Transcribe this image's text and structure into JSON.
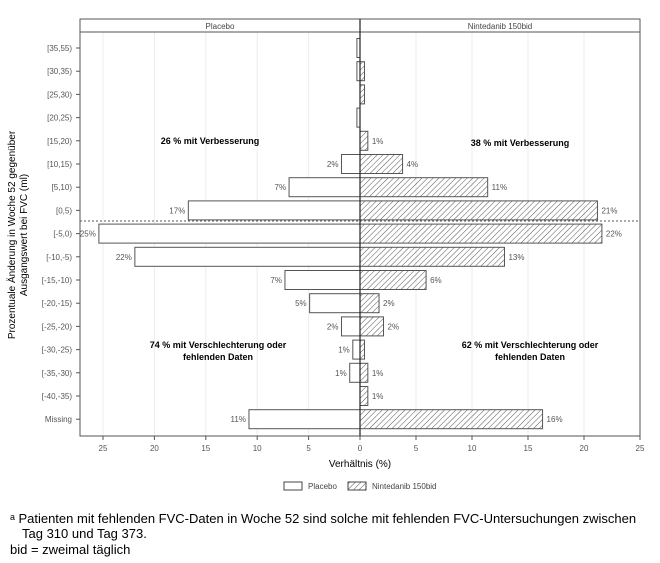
{
  "chart_data": {
    "type": "bar",
    "orientation": "horizontal-butterfly",
    "panels": [
      "Placebo",
      "Nintedanib 150bid"
    ],
    "categories": [
      "[35,55)",
      "[30,35)",
      "[25,30)",
      "[20,25)",
      "[15,20)",
      "[10,15)",
      "[5,10)",
      "[0,5)",
      "[-5,0)",
      "[-10,-5)",
      "[-15,-10)",
      "[-20,-15)",
      "[-25,-20)",
      "[-30,-25)",
      "[-35,-30)",
      "[-40,-35)",
      "Missing"
    ],
    "series": [
      {
        "name": "Placebo",
        "side": "left",
        "fill": "none",
        "values": [
          0.3,
          0.3,
          0,
          0.3,
          0,
          1.8,
          6.9,
          16.7,
          25.4,
          21.9,
          7.3,
          4.9,
          1.8,
          0.7,
          1.0,
          0,
          10.8
        ],
        "labels": [
          "",
          "",
          "",
          "",
          "",
          "2%",
          "7%",
          "17%",
          "25%",
          "22%",
          "7%",
          "5%",
          "2%",
          "1%",
          "1%",
          "",
          "11%"
        ]
      },
      {
        "name": "Nintedanib 150bid",
        "side": "right",
        "fill": "hatch",
        "values": [
          0,
          0.4,
          0.4,
          0,
          0.7,
          3.8,
          11.4,
          21.2,
          21.6,
          12.9,
          5.9,
          1.7,
          2.1,
          0.4,
          0.7,
          0.7,
          16.3
        ],
        "labels": [
          "",
          "",
          "",
          "",
          "1%",
          "4%",
          "11%",
          "21%",
          "22%",
          "13%",
          "6%",
          "2%",
          "2%",
          "",
          "1%",
          "1%",
          "16%"
        ]
      }
    ],
    "xticks_left": [
      "25",
      "20",
      "15",
      "10",
      "5",
      "0"
    ],
    "xticks_right": [
      "5",
      "10",
      "15",
      "20",
      "25"
    ],
    "xlabel": "Verhältnis (%)",
    "ylabel": [
      "Prozentuale Änderung  in Woche 52 gegenüber",
      "Ausgangswert bei FVC (ml)"
    ],
    "xlim": [
      0,
      25
    ],
    "grid": true,
    "legend": {
      "position": "bottom",
      "entries": [
        "Placebo",
        "Nintedanib 150bid"
      ]
    },
    "annotations": {
      "left_top": "26 % mit Verbesserung",
      "right_top": "38 % mit Verbesserung",
      "left_bottom": [
        "74 % mit Verschlechterung oder",
        "fehlenden Daten"
      ],
      "right_bottom": [
        "62 % mit Verschlechterung oder",
        "fehlenden Daten"
      ]
    }
  },
  "footnotes": {
    "line1": "ᵃ Patienten mit fehlenden FVC-Daten in Woche 52 sind solche mit fehlenden FVC-Untersuchungen zwischen",
    "line2": "Tag 310 und Tag 373.",
    "line3": "bid = zweimal täglich"
  }
}
